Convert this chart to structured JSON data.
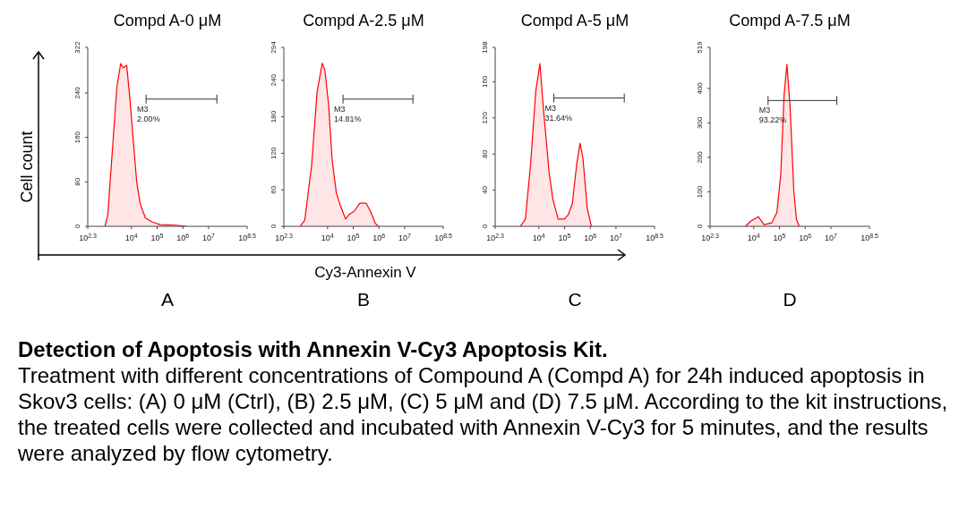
{
  "chart_data": [
    {
      "type": "area",
      "title": "Compd A-0 μM",
      "xlabel": "A",
      "ylabel": "Cell count",
      "log": "x",
      "x": [
        930,
        1200,
        1900,
        2700,
        3800,
        4800,
        6500,
        8700,
        12000,
        16000,
        22000,
        35000,
        63000,
        130000,
        540000,
        1400000
      ],
      "series": [
        {
          "color": "#ff0000",
          "values": [
            0,
            20,
            150,
            250,
            293,
            285,
            290,
            230,
            150,
            80,
            40,
            15,
            8,
            3,
            2,
            0
          ]
        },
        {
          "type": "line",
          "name": "M3",
          "color": "#333333",
          "x": [
            37000,
            21000000
          ],
          "values": [
            229,
            229
          ]
        }
      ],
      "xlim": [
        199.5,
        316200000
      ],
      "xticks": [
        {
          "value": 199.5,
          "label": "10$^{2.3}$"
        },
        {
          "value": 10000,
          "label": "10$^{4}$"
        },
        {
          "value": 100000,
          "label": "10$^{5}$"
        },
        {
          "value": 1000000,
          "label": "10$^{6}$"
        },
        {
          "value": 10000000,
          "label": "10$^{7}$"
        },
        {
          "value": 316200000,
          "label": "10$^{8.5}$"
        }
      ],
      "ylim": [
        0,
        322
      ],
      "yticks": [
        0,
        80,
        160,
        240,
        322
      ],
      "annotations": [
        {
          "text": "2.00%",
          "x": 37000,
          "y": 229
        }
      ]
    },
    {
      "type": "area",
      "title": "Compd A-2.5 μM",
      "xlabel": "B",
      "log": "x",
      "x": [
        850,
        1300,
        2400,
        3900,
        6200,
        7800,
        11000,
        15000,
        22000,
        31000,
        50000,
        71000,
        110000,
        180000,
        320000,
        460000,
        720000,
        930000
      ],
      "series": [
        {
          "color": "#ff0000",
          "values": [
            0,
            10,
            100,
            220,
            268,
            258,
            200,
            110,
            55,
            35,
            12,
            20,
            25,
            38,
            38,
            25,
            5,
            0
          ]
        },
        {
          "type": "line",
          "name": "M3",
          "color": "#333333",
          "x": [
            40000,
            21000000
          ],
          "values": [
            209,
            209
          ]
        }
      ],
      "xlim": [
        199.5,
        316200000
      ],
      "xticks": [
        {
          "value": 199.5,
          "label": "10$^{2.3}$"
        },
        {
          "value": 10000,
          "label": "10$^{4}$"
        },
        {
          "value": 100000,
          "label": "10$^{5}$"
        },
        {
          "value": 1000000,
          "label": "10$^{6}$"
        },
        {
          "value": 10000000,
          "label": "10$^{7}$"
        },
        {
          "value": 316200000,
          "label": "10$^{8.5}$"
        }
      ],
      "ylim": [
        0,
        294
      ],
      "yticks": [
        0,
        60,
        120,
        180,
        240,
        294
      ],
      "annotations": [
        {
          "text": "14.81%",
          "x": 40000,
          "y": 209
        }
      ]
    },
    {
      "type": "area",
      "title": "Compd A-5 μM",
      "xlabel": "C",
      "log": "x",
      "x": [
        1900,
        3000,
        4800,
        7600,
        11000,
        15000,
        25000,
        35000,
        56000,
        100000,
        140000,
        200000,
        300000,
        400000,
        520000,
        760000,
        1100000
      ],
      "series": [
        {
          "color": "#ff0000",
          "values": [
            0,
            8,
            70,
            150,
            180,
            130,
            60,
            30,
            8,
            8,
            13,
            25,
            70,
            92,
            75,
            20,
            0
          ]
        },
        {
          "type": "line",
          "name": "M3",
          "color": "#333333",
          "x": [
            38000,
            21000000
          ],
          "values": [
            142,
            142
          ]
        }
      ],
      "xlim": [
        199.5,
        316200000
      ],
      "xticks": [
        {
          "value": 199.5,
          "label": "10$^{2.3}$"
        },
        {
          "value": 10000,
          "label": "10$^{4}$"
        },
        {
          "value": 100000,
          "label": "10$^{5}$"
        },
        {
          "value": 1000000,
          "label": "10$^{6}$"
        },
        {
          "value": 10000000,
          "label": "10$^{7}$"
        },
        {
          "value": 316200000,
          "label": "10$^{8.5}$"
        }
      ],
      "ylim": [
        0,
        198
      ],
      "yticks": [
        0,
        40,
        80,
        120,
        160,
        198
      ],
      "annotations": [
        {
          "text": "31.64%",
          "x": 38000,
          "y": 142
        }
      ]
    },
    {
      "type": "area",
      "title": "Compd A-7.5 μM",
      "xlabel": "D",
      "log": "x",
      "x": [
        4800,
        7600,
        15000,
        25000,
        50000,
        79000,
        112000,
        151000,
        195000,
        257000,
        363000,
        457000,
        589000
      ],
      "series": [
        {
          "color": "#ff0000",
          "values": [
            0,
            15,
            28,
            5,
            10,
            40,
            150,
            380,
            470,
            350,
            100,
            20,
            0
          ]
        },
        {
          "type": "line",
          "name": "M3",
          "color": "#333333",
          "x": [
            36000,
            17000000
          ],
          "values": [
            365,
            365
          ]
        }
      ],
      "xlim": [
        199.5,
        316200000
      ],
      "xticks": [
        {
          "value": 199.5,
          "label": "10$^{2.3}$"
        },
        {
          "value": 10000,
          "label": "10$^{4}$"
        },
        {
          "value": 100000,
          "label": "10$^{5}$"
        },
        {
          "value": 1000000,
          "label": "10$^{6}$"
        },
        {
          "value": 10000000,
          "label": "10$^{7}$"
        },
        {
          "value": 316200000,
          "label": "10$^{8.5}$"
        }
      ],
      "ylim": [
        0,
        519
      ],
      "yticks": [
        0,
        100,
        200,
        300,
        400,
        519
      ],
      "annotations": [
        {
          "text": "93.22%",
          "x": 36000,
          "y": 365
        }
      ]
    },
    {
      "type": "other",
      "title": "Detection of Apoptosis with Annexin V-Cy3 Apoptosis Kit.",
      "annotations": [
        "Cy3-Annexin V",
        "Treatment with different concentrations of Compound A (Compd A) for 24h induced apoptosis in Skov3 cells: (A) 0 μM (Ctrl), (B) 2.5 μM, (C) 5 μM and (D) 7.5 μM. According to the kit instructions, the treated cells were collected and incubated with Annexin V-Cy3 for 5 minutes, and the results were analyzed by flow cytometry."
      ]
    }
  ]
}
